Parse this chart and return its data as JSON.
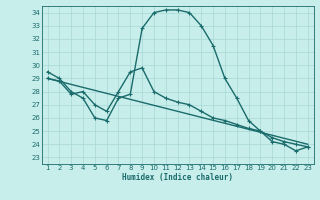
{
  "title": "",
  "xlabel": "Humidex (Indice chaleur)",
  "xlim": [
    0.5,
    23.5
  ],
  "ylim": [
    22.5,
    34.5
  ],
  "yticks": [
    23,
    24,
    25,
    26,
    27,
    28,
    29,
    30,
    31,
    32,
    33,
    34
  ],
  "xticks": [
    1,
    2,
    3,
    4,
    5,
    6,
    7,
    8,
    9,
    10,
    11,
    12,
    13,
    14,
    15,
    16,
    17,
    18,
    19,
    20,
    21,
    22,
    23
  ],
  "bg_color": "#c8eeec",
  "line_color": "#1a6b6b",
  "grid_color": "#a8d8d4",
  "line1_x": [
    1,
    2,
    3,
    4,
    5,
    6,
    7,
    8,
    9,
    10,
    11,
    12,
    13,
    14,
    15,
    16,
    17,
    18,
    19,
    20,
    21,
    22,
    23
  ],
  "line1_y": [
    29.5,
    29.0,
    28.0,
    27.5,
    26.0,
    25.8,
    27.5,
    27.8,
    32.8,
    34.0,
    34.2,
    34.2,
    34.0,
    33.0,
    31.5,
    29.0,
    27.5,
    25.8,
    25.0,
    24.2,
    24.0,
    23.5,
    23.8
  ],
  "line2_x": [
    1,
    2,
    3,
    4,
    5,
    6,
    7,
    8,
    9,
    10,
    11,
    12,
    13,
    14,
    15,
    16,
    17,
    18,
    19,
    20,
    21,
    22,
    23
  ],
  "line2_y": [
    29.0,
    28.8,
    27.8,
    28.0,
    27.0,
    26.5,
    28.0,
    29.5,
    29.8,
    28.0,
    27.5,
    27.2,
    27.0,
    26.5,
    26.0,
    25.8,
    25.5,
    25.2,
    25.0,
    24.5,
    24.2,
    24.0,
    23.8
  ],
  "line3_x": [
    1,
    23
  ],
  "line3_y": [
    29.0,
    24.0
  ]
}
